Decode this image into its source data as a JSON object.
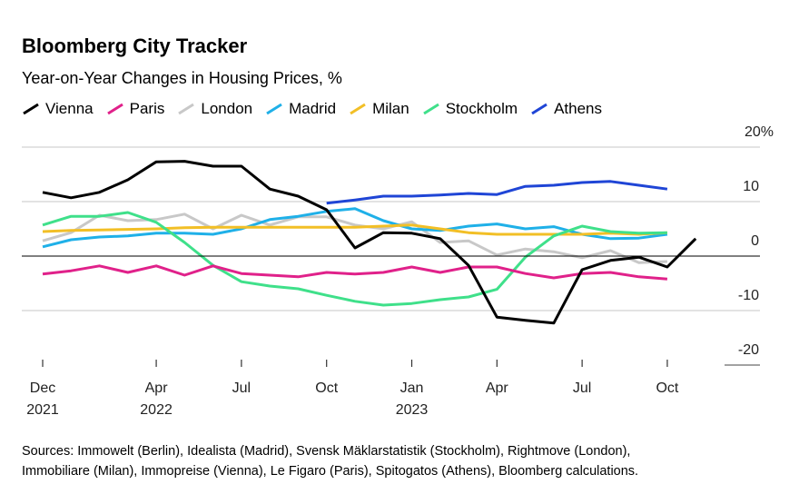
{
  "title": "Bloomberg City Tracker",
  "subtitle": "Year-on-Year Changes in Housing Prices, %",
  "sources": [
    "Sources: Immowelt (Berlin), Idealista (Madrid), Svensk Mäklarstatistik (Stockholm), Rightmove (London),",
    "Immobiliare (Milan), Immopreise (Vienna), Le Figaro (Paris), Spitogatos (Athens), Bloomberg calculations."
  ],
  "chart_data": {
    "type": "line",
    "title": "Bloomberg City Tracker",
    "subtitle": "Year-on-Year Changes in Housing Prices, %",
    "x": [
      "2021-12",
      "2022-01",
      "2022-02",
      "2022-03",
      "2022-04",
      "2022-05",
      "2022-06",
      "2022-07",
      "2022-08",
      "2022-09",
      "2022-10",
      "2022-11",
      "2022-12",
      "2023-01",
      "2023-02",
      "2023-03",
      "2023-04",
      "2023-05",
      "2023-06",
      "2023-07",
      "2023-08",
      "2023-09",
      "2023-10",
      "2023-11"
    ],
    "x_ticks": [
      {
        "x": "2021-12",
        "label": "Dec",
        "sub": "2021"
      },
      {
        "x": "2022-04",
        "label": "Apr",
        "sub": "2022"
      },
      {
        "x": "2022-07",
        "label": "Jul",
        "sub": ""
      },
      {
        "x": "2022-10",
        "label": "Oct",
        "sub": ""
      },
      {
        "x": "2023-01",
        "label": "Jan",
        "sub": "2023"
      },
      {
        "x": "2023-04",
        "label": "Apr",
        "sub": ""
      },
      {
        "x": "2023-07",
        "label": "Jul",
        "sub": ""
      },
      {
        "x": "2023-10",
        "label": "Oct",
        "sub": ""
      }
    ],
    "y_ticks": [
      {
        "v": 20,
        "label": "20%"
      },
      {
        "v": 10,
        "label": "10"
      },
      {
        "v": 0,
        "label": "0"
      },
      {
        "v": -10,
        "label": "-10"
      },
      {
        "v": -20,
        "label": "-20"
      }
    ],
    "ylim": [
      -20,
      20
    ],
    "grid": true,
    "legend_placement": "top",
    "series": [
      {
        "name": "Vienna",
        "color": "#000000",
        "values": [
          11.7,
          10.7,
          11.7,
          14,
          17.3,
          17.4,
          16.5,
          16.5,
          12.3,
          11,
          8.5,
          1.5,
          4.3,
          4.2,
          3.2,
          -1.7,
          -11.2,
          -11.8,
          -12.3,
          -2.5,
          -0.8,
          -0.2,
          -2,
          3.2
        ]
      },
      {
        "name": "Paris",
        "color": "#e0218a",
        "values": [
          -3.3,
          -2.7,
          -1.8,
          -3,
          -1.8,
          -3.5,
          -1.8,
          -3.2,
          -3.5,
          -3.8,
          -3,
          -3.3,
          -3,
          -2,
          -3,
          -2,
          -2,
          -3.2,
          -4,
          -3.2,
          -3,
          -3.8,
          -4.2,
          null
        ]
      },
      {
        "name": "London",
        "color": "#c8c8c8",
        "values": [
          2.8,
          4.3,
          7.5,
          6.5,
          6.7,
          7.7,
          5,
          7.5,
          5.7,
          7.2,
          7.2,
          5.7,
          5,
          6.3,
          2.5,
          2.8,
          0.2,
          1.3,
          0.8,
          -0.3,
          1,
          -1.2,
          -1,
          null
        ]
      },
      {
        "name": "Madrid",
        "color": "#1fb0e8",
        "values": [
          1.7,
          3,
          3.5,
          3.7,
          4.2,
          4.2,
          4,
          5,
          6.7,
          7.3,
          8.2,
          8.7,
          6.5,
          5,
          4.7,
          5.5,
          5.9,
          5,
          5.4,
          4,
          3.2,
          3.3,
          4,
          null
        ]
      },
      {
        "name": "Milan",
        "color": "#f2bf26",
        "values": [
          4.5,
          4.7,
          4.8,
          4.9,
          5,
          5.2,
          5.3,
          5.3,
          5.3,
          5.3,
          5.3,
          5.3,
          5.5,
          5.7,
          5,
          4.3,
          4,
          4,
          4,
          4,
          4.2,
          4,
          4.3,
          null
        ]
      },
      {
        "name": "Stockholm",
        "color": "#3fe08a",
        "values": [
          5.7,
          7.3,
          7.3,
          8,
          6.2,
          2.5,
          -1.7,
          -4.7,
          -5.5,
          -6,
          -7.2,
          -8.3,
          -9,
          -8.7,
          -8,
          -7.5,
          -6.1,
          -0.2,
          3.7,
          5.5,
          4.5,
          4.2,
          4.3,
          null
        ]
      },
      {
        "name": "Athens",
        "color": "#1f45d6",
        "values": [
          null,
          null,
          null,
          null,
          null,
          null,
          null,
          null,
          null,
          null,
          9.7,
          10.3,
          11,
          11,
          11.2,
          11.5,
          11.3,
          12.8,
          13,
          13.5,
          13.7,
          13,
          12.3,
          null
        ]
      }
    ]
  }
}
